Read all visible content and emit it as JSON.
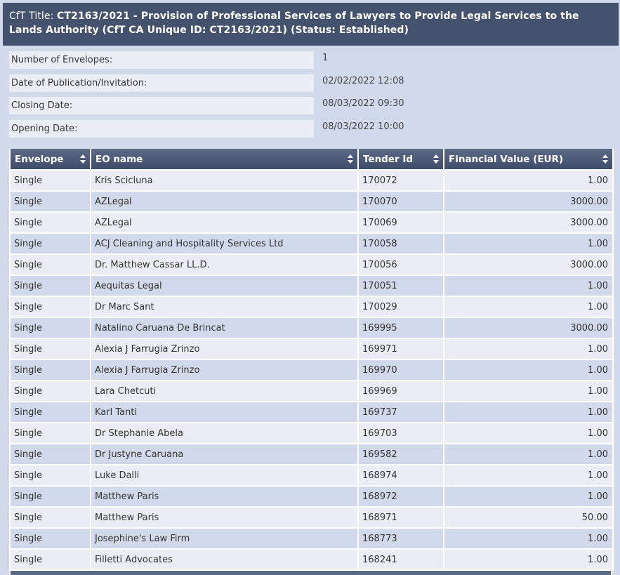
{
  "cft": {
    "title_label": "CfT Title: ",
    "title_value": "CT2163/2021 - Provision of Professional Services of Lawyers to Provide Legal Services to the Lands Authority (CfT CA Unique ID: CT2163/2021) (Status: Established)"
  },
  "info": [
    {
      "label": "Number of Envelopes:",
      "value": "1"
    },
    {
      "label": "Date of Publication/Invitation:",
      "value": "02/02/2022 12:08"
    },
    {
      "label": "Closing Date:",
      "value": "08/03/2022 09:30"
    },
    {
      "label": "Opening Date:",
      "value": "08/03/2022 10:00"
    }
  ],
  "table": {
    "headers": [
      "Envelope",
      "EO name",
      "Tender Id",
      "Financial Value (EUR)"
    ],
    "rows": [
      [
        "Single",
        "Kris Scicluna",
        "170072",
        "1.00"
      ],
      [
        "Single",
        "AZLegal",
        "170070",
        "3000.00"
      ],
      [
        "Single",
        "AZLegal",
        "170069",
        "3000.00"
      ],
      [
        "Single",
        "ACJ Cleaning and Hospitality Services Ltd",
        "170058",
        "1.00"
      ],
      [
        "Single",
        "Dr. Matthew Cassar LL.D.",
        "170056",
        "3000.00"
      ],
      [
        "Single",
        "Aequitas Legal",
        "170051",
        "1.00"
      ],
      [
        "Single",
        "Dr Marc Sant",
        "170029",
        "1.00"
      ],
      [
        "Single",
        "Natalino Caruana De Brincat",
        "169995",
        "3000.00"
      ],
      [
        "Single",
        "Alexia J Farrugia Zrinzo",
        "169971",
        "1.00"
      ],
      [
        "Single",
        "Alexia J Farrugia Zrinzo",
        "169970",
        "1.00"
      ],
      [
        "Single",
        "Lara Chetcuti",
        "169969",
        "1.00"
      ],
      [
        "Single",
        "Karl Tanti",
        "169737",
        "1.00"
      ],
      [
        "Single",
        "Dr Stephanie Abela",
        "169703",
        "1.00"
      ],
      [
        "Single",
        "Dr Justyne Caruana",
        "169582",
        "1.00"
      ],
      [
        "Single",
        "Luke Dalli",
        "168974",
        "1.00"
      ],
      [
        "Single",
        "Matthew Paris",
        "168972",
        "1.00"
      ],
      [
        "Single",
        "Matthew Paris",
        "168971",
        "50.00"
      ],
      [
        "Single",
        "Josephine's Law Firm",
        "168773",
        "1.00"
      ],
      [
        "Single",
        "Filletti Advocates",
        "168241",
        "1.00"
      ]
    ]
  }
}
